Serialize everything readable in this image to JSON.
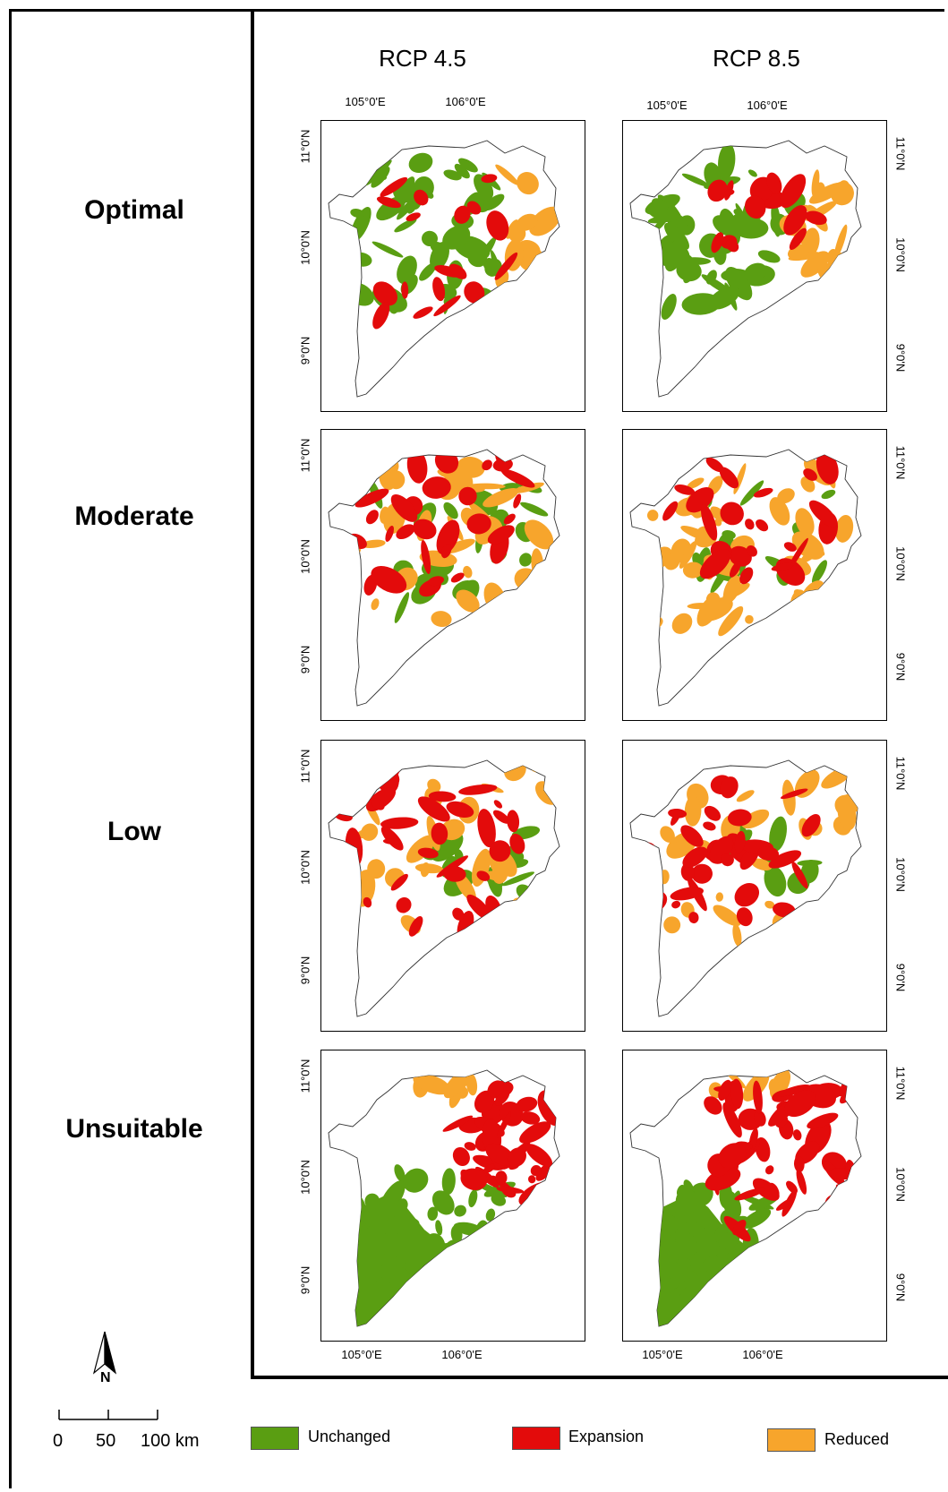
{
  "columns": [
    "RCP 4.5",
    "RCP 8.5"
  ],
  "rows": [
    "Optimal",
    "Moderate",
    "Low",
    "Unsuitable"
  ],
  "axes": {
    "lon_ticks": [
      "105°0'E",
      "106°0'E"
    ],
    "lat_ticks": [
      "11°0'N",
      "10°0'N",
      "9°0'N"
    ]
  },
  "legend": [
    {
      "label": "Unchanged",
      "color": "#5a9e12"
    },
    {
      "label": "Expansion",
      "color": "#e30b0b"
    },
    {
      "label": "Reduced",
      "color": "#f7a52c"
    }
  ],
  "scale_bar": {
    "labels": [
      "0",
      "50",
      "100 km"
    ]
  },
  "north_arrow": {
    "label": "N"
  }
}
